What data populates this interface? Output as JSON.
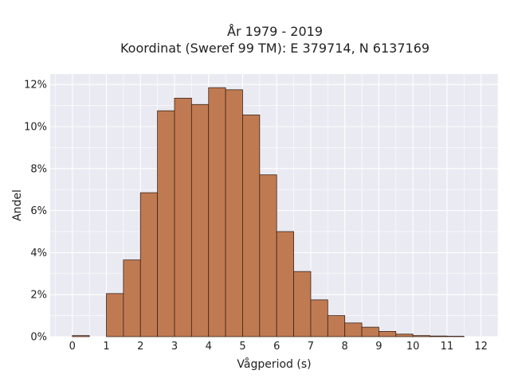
{
  "chart_data": {
    "type": "bar",
    "title_line1": "År 1979 - 2019",
    "title_line2": "Koordinat (Sweref 99 TM): E 379714, N 6137169",
    "xlabel": "Vågperiod (s)",
    "ylabel": "Andel",
    "xlim": [
      -0.65,
      12.5
    ],
    "ylim": [
      0,
      12.5
    ],
    "x_ticks": [
      0,
      1,
      2,
      3,
      4,
      5,
      6,
      7,
      8,
      9,
      10,
      11,
      12
    ],
    "x_tick_labels": [
      "0",
      "1",
      "2",
      "3",
      "4",
      "5",
      "6",
      "7",
      "8",
      "9",
      "10",
      "11",
      "12"
    ],
    "y_ticks": [
      0,
      2,
      4,
      6,
      8,
      10,
      12
    ],
    "y_tick_labels": [
      "0%",
      "2%",
      "4%",
      "6%",
      "8%",
      "10%",
      "12%"
    ],
    "bin_width": 0.5,
    "bins": [
      {
        "start": 0.0,
        "value": 0.05
      },
      {
        "start": 1.0,
        "value": 2.05
      },
      {
        "start": 1.5,
        "value": 3.65
      },
      {
        "start": 2.0,
        "value": 6.85
      },
      {
        "start": 2.5,
        "value": 10.75
      },
      {
        "start": 3.0,
        "value": 11.35
      },
      {
        "start": 3.5,
        "value": 11.05
      },
      {
        "start": 4.0,
        "value": 11.85
      },
      {
        "start": 4.5,
        "value": 11.75
      },
      {
        "start": 5.0,
        "value": 10.55
      },
      {
        "start": 5.5,
        "value": 7.7
      },
      {
        "start": 6.0,
        "value": 5.0
      },
      {
        "start": 6.5,
        "value": 3.1
      },
      {
        "start": 7.0,
        "value": 1.75
      },
      {
        "start": 7.5,
        "value": 1.0
      },
      {
        "start": 8.0,
        "value": 0.65
      },
      {
        "start": 8.5,
        "value": 0.45
      },
      {
        "start": 9.0,
        "value": 0.25
      },
      {
        "start": 9.5,
        "value": 0.12
      },
      {
        "start": 10.0,
        "value": 0.05
      },
      {
        "start": 10.5,
        "value": 0.03
      },
      {
        "start": 11.0,
        "value": 0.02
      }
    ],
    "grid": true,
    "colors": {
      "bar": "#c07a52",
      "bar_edge": "#3a2418",
      "plot_bg": "#eaeaf2",
      "grid": "#ffffff"
    }
  }
}
